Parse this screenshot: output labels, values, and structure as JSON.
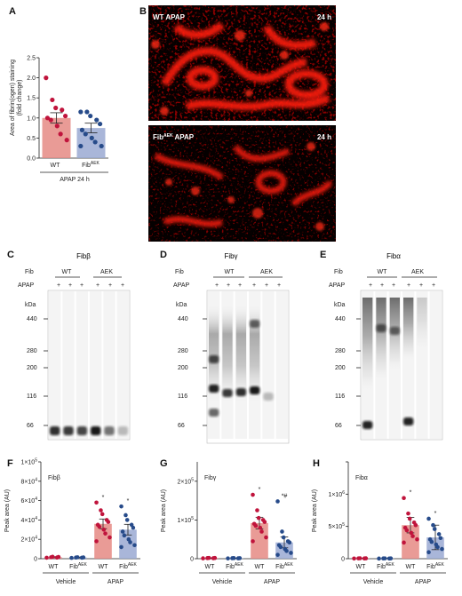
{
  "panels": {
    "A": {
      "letter": "A",
      "ylabel_line1": "Area of fibrin(ogen) staining",
      "ylabel_line2": "(fold change)",
      "group_label": "APAP 24 h",
      "categories": [
        "WT",
        "Fib",
        "AEK"
      ]
    },
    "B": {
      "letter": "B",
      "top_title": "WT APAP",
      "top_time": "24 h",
      "bottom_title_main": "Fib",
      "bottom_title_sup": "AEK",
      "bottom_title_rest": " APAP",
      "bottom_time": "24 h"
    },
    "C": {
      "letter": "C",
      "title": "Fibβ"
    },
    "D": {
      "letter": "D",
      "title": "Fibγ"
    },
    "E": {
      "letter": "E",
      "title": "Fibα"
    },
    "F": {
      "letter": "F",
      "title": "Fibβ"
    },
    "G": {
      "letter": "G",
      "title": "Fibγ"
    },
    "H": {
      "letter": "H",
      "title": "Fibα"
    }
  },
  "western": {
    "fib_label": "Fib",
    "apap_label": "APAP",
    "kda_label": "kDa",
    "wt_label": "WT",
    "aek_label": "AEK",
    "plus": "+",
    "markers": [
      "440",
      "280",
      "200",
      "116",
      "66"
    ]
  },
  "bottom_labels": {
    "ylabel": "Peak area (AU)",
    "vehicle": "Vehicle",
    "apap": "APAP",
    "wt": "WT",
    "fib": "Fib",
    "aek": "AEK",
    "star": "*",
    "starhash": "*#"
  },
  "chart_data": [
    {
      "type": "bar",
      "panel": "A",
      "ylabel": "Area of fibrin(ogen) staining (fold change)",
      "categories": [
        "WT",
        "FibAEK"
      ],
      "values": [
        1.0,
        0.75
      ],
      "errors": [
        0.13,
        0.12
      ],
      "ylim": [
        0,
        2.5
      ],
      "yticks": [
        0.0,
        0.5,
        1.0,
        1.5,
        2.0,
        2.5
      ],
      "yticklabels": [
        "0.0",
        "0.5",
        "1.0",
        "1.5",
        "2.0",
        "2.5"
      ],
      "points": [
        [
          2.0,
          1.45,
          1.25,
          1.2,
          1.05,
          1.0,
          0.95,
          0.8,
          0.6,
          0.45
        ],
        [
          1.15,
          1.15,
          1.05,
          0.95,
          0.85,
          0.7,
          0.6,
          0.5,
          0.4,
          0.3,
          0.3
        ]
      ],
      "colors": [
        "#e58a84",
        "#9aa9d2"
      ],
      "point_colors": [
        "#c0143c",
        "#274b8a"
      ]
    },
    {
      "type": "bar",
      "panel": "F",
      "title": "Fibβ",
      "ylabel": "Peak area (AU)",
      "categories": [
        "Vehicle WT",
        "Vehicle FibAEK",
        "APAP WT",
        "APAP FibAEK"
      ],
      "values": [
        1500,
        1200,
        36000,
        30000
      ],
      "errors": [
        500,
        400,
        5000,
        5500
      ],
      "ylim": [
        0,
        100000
      ],
      "yticks": [
        0,
        20000,
        40000,
        60000,
        80000,
        100000
      ],
      "yticklabels_mant": [
        "0",
        "2×10",
        "4×10",
        "6×10",
        "8×10",
        "1×10"
      ],
      "yticklabels_exp": [
        "",
        "4",
        "4",
        "4",
        "4",
        "5"
      ],
      "annotations": [
        "",
        "",
        "*",
        "*"
      ],
      "points": [
        [
          1000,
          1500,
          2000,
          1200,
          1800
        ],
        [
          800,
          1200,
          1500,
          1000,
          1300
        ],
        [
          58000,
          50000,
          46000,
          40000,
          38000,
          35000,
          33000,
          30000,
          26000,
          22000,
          18000
        ],
        [
          54000,
          45000,
          40000,
          35000,
          32000,
          28000,
          24000,
          20000,
          17000,
          14000,
          12000
        ]
      ],
      "colors": [
        "#e58a84",
        "#9aa9d2",
        "#e58a84",
        "#9aa9d2"
      ],
      "point_colors": [
        "#c0143c",
        "#274b8a",
        "#c0143c",
        "#274b8a"
      ]
    },
    {
      "type": "bar",
      "panel": "G",
      "title": "Fibγ",
      "ylabel": "Peak area (AU)",
      "categories": [
        "Vehicle WT",
        "Vehicle FibAEK",
        "APAP WT",
        "APAP FibAEK"
      ],
      "values": [
        1500,
        1200,
        92000,
        42000
      ],
      "errors": [
        600,
        500,
        15000,
        14000
      ],
      "ylim": [
        0,
        250000
      ],
      "yticks": [
        0,
        100000,
        200000
      ],
      "yticklabels_mant": [
        "0",
        "1×10",
        "2×10"
      ],
      "yticklabels_exp": [
        "",
        "5",
        "5"
      ],
      "annotations": [
        "",
        "",
        "*",
        "*#"
      ],
      "points": [
        [
          1000,
          1500,
          2000,
          1200,
          1800
        ],
        [
          800,
          1200,
          1500,
          1000,
          1300
        ],
        [
          165000,
          125000,
          105000,
          100000,
          95000,
          90000,
          85000,
          80000,
          70000,
          55000,
          45000
        ],
        [
          148000,
          70000,
          55000,
          45000,
          42000,
          35000,
          30000,
          25000,
          20000,
          15000,
          10000
        ]
      ],
      "colors": [
        "#e58a84",
        "#9aa9d2",
        "#e58a84",
        "#9aa9d2"
      ],
      "point_colors": [
        "#c0143c",
        "#274b8a",
        "#c0143c",
        "#274b8a"
      ]
    },
    {
      "type": "bar",
      "panel": "H",
      "title": "Fibα",
      "ylabel": "Peak area (AU)",
      "categories": [
        "Vehicle WT",
        "Vehicle FibAEK",
        "APAP WT",
        "APAP FibAEK"
      ],
      "values": [
        5000,
        4000,
        520000,
        330000
      ],
      "errors": [
        2000,
        2000,
        120000,
        190000
      ],
      "ylim": [
        0,
        1500000
      ],
      "yticks": [
        0,
        500000,
        1000000,
        1500000
      ],
      "yticklabels_mant": [
        "0",
        "5×10",
        "1×10",
        ""
      ],
      "yticklabels_exp": [
        "",
        "5",
        "6",
        ""
      ],
      "annotations": [
        "",
        "",
        "*",
        "*"
      ],
      "points": [
        [
          3000,
          5000,
          7000,
          4000,
          6000
        ],
        [
          2000,
          4000,
          5000,
          3000,
          4500
        ],
        [
          940000,
          700000,
          620000,
          560000,
          520000,
          480000,
          440000,
          400000,
          350000,
          300000,
          250000
        ],
        [
          620000,
          520000,
          460000,
          380000,
          320000,
          300000,
          260000,
          220000,
          180000,
          150000,
          100000
        ]
      ],
      "colors": [
        "#e58a84",
        "#9aa9d2",
        "#e58a84",
        "#9aa9d2"
      ],
      "point_colors": [
        "#c0143c",
        "#274b8a",
        "#c0143c",
        "#274b8a"
      ]
    }
  ]
}
